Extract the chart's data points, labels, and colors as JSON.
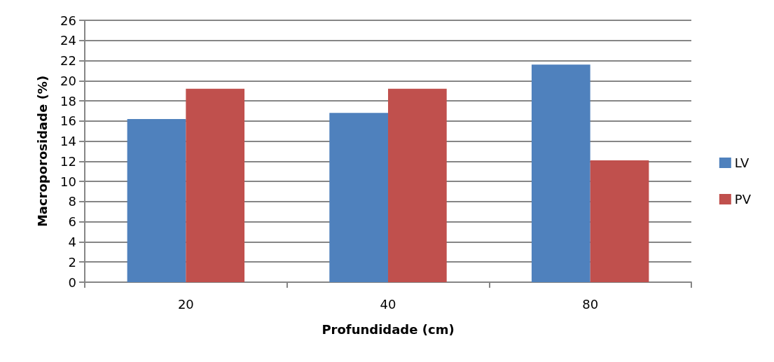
{
  "chart_data": {
    "type": "bar",
    "xlabel": "Profundidade (cm)",
    "ylabel": "Macroporosidade (%)",
    "categories": [
      "20",
      "40",
      "80"
    ],
    "series": [
      {
        "name": "LV",
        "color": "#4f81bd",
        "values": [
          16.2,
          16.8,
          21.6
        ]
      },
      {
        "name": "PV",
        "color": "#c0504d",
        "values": [
          19.2,
          19.2,
          12.1
        ]
      }
    ],
    "ylim": [
      0,
      26
    ],
    "yticks": [
      0,
      2,
      4,
      6,
      8,
      10,
      12,
      14,
      16,
      18,
      20,
      22,
      24,
      26
    ],
    "grid": "y",
    "legend": "right"
  }
}
